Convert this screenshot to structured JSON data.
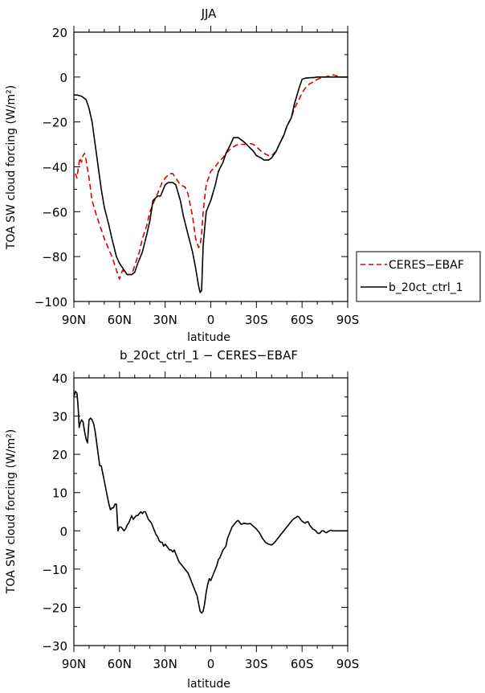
{
  "chart_data": [
    {
      "type": "line",
      "title": "JJA",
      "xlabel": "latitude",
      "ylabel": "TOA SW cloud forcing (W/m²)",
      "xlim": [
        90,
        -90
      ],
      "ylim": [
        -100,
        20
      ],
      "xticks": [
        90,
        60,
        30,
        0,
        -30,
        -60,
        -90
      ],
      "xtick_labels": [
        "90N",
        "60N",
        "30N",
        "0",
        "30S",
        "60S",
        "90S"
      ],
      "yticks": [
        -100,
        -80,
        -60,
        -40,
        -20,
        0,
        20
      ],
      "ytick_labels": [
        "−100",
        "−80",
        "−60",
        "−40",
        "−20",
        "0",
        "20"
      ],
      "legend_position": "outside-right",
      "series": [
        {
          "name": "CERES−EBAF",
          "color": "#e00000",
          "dash": "dashed",
          "x": [
            89,
            88,
            87,
            86,
            85,
            84,
            83,
            82,
            80,
            78,
            75,
            70,
            65,
            62,
            60,
            58,
            55,
            52,
            50,
            47,
            45,
            42,
            40,
            37,
            35,
            32,
            30,
            27,
            25,
            22,
            20,
            17,
            15,
            12,
            10,
            8,
            7,
            6,
            5,
            3,
            0,
            -3,
            -5,
            -8,
            -10,
            -13,
            -15,
            -18,
            -20,
            -22,
            -25,
            -28,
            -30,
            -33,
            -35,
            -38,
            -40,
            -43,
            -45,
            -48,
            -50,
            -53,
            -55,
            -58,
            -60,
            -62,
            -65,
            -68,
            -70,
            -72,
            -75,
            -78,
            -80,
            -83,
            -85,
            -88,
            -90
          ],
          "y": [
            -43,
            -45,
            -40,
            -36,
            -38,
            -35,
            -34,
            -37,
            -45,
            -55,
            -62,
            -72,
            -80,
            -86,
            -90,
            -86,
            -88,
            -88,
            -84,
            -78,
            -72,
            -66,
            -60,
            -55,
            -52,
            -47,
            -45,
            -43,
            -43,
            -46,
            -48,
            -49,
            -52,
            -62,
            -72,
            -76,
            -75,
            -70,
            -60,
            -48,
            -42,
            -40,
            -38,
            -36,
            -34,
            -32,
            -31,
            -30,
            -30,
            -30,
            -29.5,
            -30,
            -31,
            -33,
            -34,
            -35,
            -35,
            -33,
            -30,
            -26,
            -22,
            -18,
            -14,
            -10,
            -7,
            -5,
            -3,
            -2,
            -1,
            -0.5,
            0,
            0.5,
            1,
            0.5,
            0,
            0,
            0
          ]
        },
        {
          "name": "b_20ct_ctrl_1",
          "color": "#000000",
          "dash": "solid",
          "x": [
            90,
            88,
            85,
            82,
            80,
            78,
            76,
            74,
            72,
            70,
            67,
            65,
            62,
            60,
            57,
            55,
            52,
            50,
            48,
            45,
            42,
            40,
            38,
            35,
            33,
            30,
            28,
            25,
            23,
            20,
            18,
            15,
            12,
            10,
            8,
            7,
            6,
            5,
            3,
            0,
            -3,
            -5,
            -8,
            -10,
            -13,
            -15,
            -18,
            -20,
            -22,
            -25,
            -28,
            -30,
            -33,
            -35,
            -38,
            -40,
            -43,
            -45,
            -48,
            -50,
            -53,
            -55,
            -58,
            -60,
            -62,
            -65,
            -68,
            -70,
            -75,
            -80,
            -85,
            -90
          ],
          "y": [
            -8,
            -8,
            -8.5,
            -10,
            -14,
            -20,
            -30,
            -40,
            -50,
            -58,
            -66,
            -72,
            -80,
            -83,
            -86,
            -88,
            -88,
            -87,
            -83,
            -78,
            -70,
            -64,
            -55,
            -53,
            -53,
            -48,
            -47,
            -47,
            -48,
            -55,
            -62,
            -70,
            -78,
            -85,
            -93,
            -96,
            -95,
            -75,
            -60,
            -55,
            -48,
            -42,
            -38,
            -34,
            -30,
            -27,
            -27,
            -28,
            -29,
            -31,
            -33,
            -35,
            -36,
            -37,
            -37,
            -36,
            -33,
            -30,
            -26,
            -22,
            -18,
            -12,
            -5,
            -1,
            -0.5,
            -0.3,
            -0.2,
            0,
            0,
            0,
            0,
            0
          ]
        }
      ]
    },
    {
      "type": "line",
      "title": "b_20ct_ctrl_1 − CERES−EBAF",
      "xlabel": "latitude",
      "ylabel": "TOA SW cloud forcing (W/m²)",
      "xlim": [
        90,
        -90
      ],
      "ylim": [
        -30,
        40
      ],
      "xticks": [
        90,
        60,
        30,
        0,
        -30,
        -60,
        -90
      ],
      "xtick_labels": [
        "90N",
        "60N",
        "30N",
        "0",
        "30S",
        "60S",
        "90S"
      ],
      "yticks": [
        -30,
        -20,
        -10,
        0,
        10,
        20,
        30,
        40
      ],
      "ytick_labels": [
        "−30",
        "−20",
        "−10",
        "0",
        "10",
        "20",
        "30",
        "40"
      ],
      "series": [
        {
          "color": "#000000",
          "dash": "solid",
          "x": [
            90,
            89,
            88,
            87.5,
            87,
            86.5,
            86,
            85,
            84,
            83,
            82,
            81,
            80,
            79,
            78,
            77,
            76,
            75,
            74,
            73,
            72,
            71,
            70,
            69,
            68,
            67,
            66,
            65,
            64,
            63,
            62,
            61,
            60,
            59,
            58,
            57,
            56,
            55,
            54,
            53,
            52,
            51,
            50,
            49,
            48,
            47,
            46,
            45,
            44,
            43,
            42,
            41,
            40,
            39,
            38,
            37,
            36,
            35,
            34,
            33,
            32,
            31,
            30,
            29,
            28,
            27,
            26,
            25,
            24,
            23,
            22,
            21,
            20,
            19,
            18,
            17,
            16,
            15,
            14,
            13,
            12,
            11,
            10,
            9,
            8,
            7,
            6,
            5,
            4,
            3,
            2,
            1,
            0,
            -1,
            -2,
            -3,
            -4,
            -5,
            -6,
            -7,
            -8,
            -9,
            -10,
            -11,
            -12,
            -13,
            -14,
            -15,
            -16,
            -17,
            -18,
            -19,
            -20,
            -22,
            -24,
            -26,
            -28,
            -30,
            -32,
            -34,
            -36,
            -38,
            -40,
            -42,
            -44,
            -46,
            -48,
            -50,
            -52,
            -54,
            -56,
            -57,
            -58,
            -59,
            -60,
            -61,
            -62,
            -63,
            -64,
            -65,
            -66,
            -67,
            -68,
            -69,
            -70,
            -71,
            -72,
            -73,
            -74,
            -75,
            -76,
            -77,
            -78,
            -79,
            -80,
            -82,
            -84,
            -86,
            -88,
            -90
          ],
          "y": [
            35,
            36.5,
            36,
            34,
            31,
            27,
            28,
            29,
            28.5,
            26,
            24,
            23,
            29,
            29.5,
            29,
            28,
            26,
            23,
            20,
            17,
            17,
            15,
            13,
            11,
            9,
            7,
            5.5,
            6,
            6,
            7,
            7,
            0,
            1,
            1,
            0.5,
            0,
            0.5,
            1.5,
            2,
            3,
            4,
            3,
            3.5,
            4,
            4,
            4.5,
            5,
            4.5,
            5,
            5,
            4,
            3,
            2.5,
            2,
            1,
            0,
            -1,
            -1.5,
            -2.5,
            -3,
            -3,
            -4,
            -3.5,
            -4,
            -4.5,
            -5,
            -5,
            -5.5,
            -5,
            -6,
            -7,
            -8,
            -8.5,
            -9,
            -9.5,
            -10,
            -10.5,
            -11,
            -12,
            -13,
            -14,
            -15,
            -16,
            -17,
            -19,
            -21,
            -21.5,
            -21,
            -19,
            -16,
            -14,
            -12.5,
            -13,
            -12,
            -11,
            -10,
            -9,
            -7.5,
            -7,
            -6,
            -5,
            -4.5,
            -4,
            -2,
            -1,
            0,
            1,
            1.5,
            2,
            2.5,
            2.7,
            2.2,
            1.7,
            2,
            1.8,
            1.9,
            1.2,
            0.5,
            -0.5,
            -2,
            -3,
            -3.5,
            -3.7,
            -3,
            -2,
            -1,
            0,
            1,
            2,
            3,
            3.5,
            3.8,
            3.6,
            3,
            2.5,
            2.2,
            2,
            2.3,
            2.4,
            1.5,
            1,
            0.5,
            0.3,
            0,
            -0.5,
            -0.7,
            -0.5,
            0,
            0,
            -0.3,
            -0.5,
            -0.2,
            0,
            0.2,
            0,
            0,
            0,
            0,
            0,
            0
          ]
        }
      ]
    }
  ]
}
